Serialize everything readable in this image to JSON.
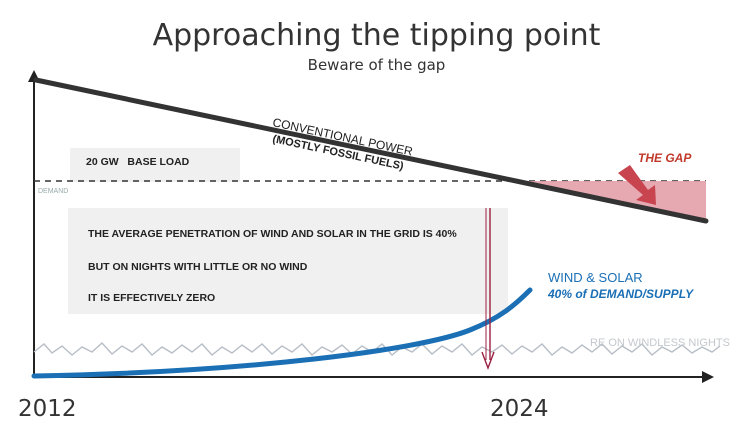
{
  "title": "Approaching the tipping point",
  "subtitle": "Beware of the gap",
  "labels": {
    "conventional_line1": "CONVENTIONAL POWER",
    "conventional_line2": "(MOSTLY FOSSIL FUELS)",
    "base_load": "20 GW   BASE LOAD",
    "demand": "DEMAND",
    "the_gap": "THE GAP",
    "wind_solar": "WIND & SOLAR",
    "wind_solar_share": "40% of DEMAND/SUPPLY",
    "windless": "RE ON WINDLESS NIGHTS"
  },
  "notes": {
    "line1": "THE AVERAGE PENETRATION OF WIND AND SOLAR IN THE GRID IS 40%",
    "line2": "BUT ON NIGHTS WITH LITTLE OR NO WIND",
    "line3": "IT IS EFFECTIVELY ZERO"
  },
  "axis": {
    "start_year": "2012",
    "end_year": "2024"
  },
  "colors": {
    "conventional": "#333333",
    "wind_solar": "#1a6fb5",
    "gap_fill": "#e3a0a8",
    "gap_text": "#c0392b",
    "arrow_marker": "#9b2040"
  }
}
